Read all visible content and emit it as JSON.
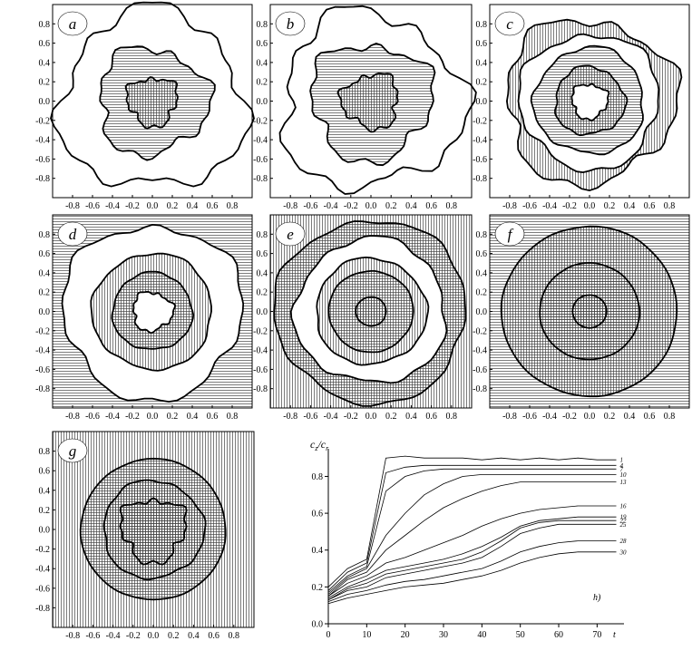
{
  "chart_data": [
    {
      "type": "contour",
      "label": "a",
      "xlim": [
        -1,
        1
      ],
      "ylim": [
        -1,
        1
      ],
      "xticks": [
        -0.8,
        -0.6,
        -0.4,
        -0.2,
        {
          "value": 0,
          "label": "0.0"
        },
        0.2,
        0.4,
        0.6,
        0.8
      ],
      "yticks": [
        -0.8,
        -0.6,
        -0.4,
        -0.2,
        {
          "value": 0,
          "label": "0.0"
        },
        0.2,
        0.4,
        0.6,
        0.8
      ]
    },
    {
      "type": "contour",
      "label": "b",
      "xlim": [
        -1,
        1
      ],
      "ylim": [
        -1,
        1
      ],
      "xticks": [
        -0.8,
        -0.6,
        -0.4,
        -0.2,
        {
          "value": 0,
          "label": "0.0"
        },
        0.2,
        0.4,
        0.6,
        0.8
      ],
      "yticks": [
        -0.8,
        -0.6,
        -0.4,
        -0.2,
        {
          "value": 0,
          "label": "0.0"
        },
        0.2,
        0.4,
        0.6,
        0.8
      ]
    },
    {
      "type": "contour",
      "label": "c",
      "xlim": [
        -1,
        1
      ],
      "ylim": [
        -1,
        1
      ],
      "xticks": [
        -0.8,
        -0.6,
        -0.4,
        -0.2,
        {
          "value": 0,
          "label": "0.0"
        },
        0.2,
        0.4,
        0.6,
        0.8
      ],
      "yticks": [
        -0.8,
        -0.6,
        -0.4,
        -0.2,
        {
          "value": 0,
          "label": "0.0"
        },
        0.2,
        0.4,
        0.6,
        0.8
      ]
    },
    {
      "type": "contour",
      "label": "d",
      "xlim": [
        -1,
        1
      ],
      "ylim": [
        -1,
        1
      ],
      "xticks": [
        -0.8,
        -0.6,
        -0.4,
        -0.2,
        {
          "value": 0,
          "label": "0.0"
        },
        0.2,
        0.4,
        0.6,
        0.8
      ],
      "yticks": [
        -0.8,
        -0.6,
        -0.4,
        -0.2,
        {
          "value": 0,
          "label": "0.0"
        },
        0.2,
        0.4,
        0.6,
        0.8
      ]
    },
    {
      "type": "contour",
      "label": "e",
      "xlim": [
        -1,
        1
      ],
      "ylim": [
        -1,
        1
      ],
      "xticks": [
        -0.8,
        -0.6,
        -0.4,
        -0.2,
        {
          "value": 0,
          "label": "0.0"
        },
        0.2,
        0.4,
        0.6,
        0.8
      ],
      "yticks": [
        -0.8,
        -0.6,
        -0.4,
        -0.2,
        {
          "value": 0,
          "label": "0.0"
        },
        0.2,
        0.4,
        0.6,
        0.8
      ]
    },
    {
      "type": "contour",
      "label": "f",
      "xlim": [
        -1,
        1
      ],
      "ylim": [
        -1,
        1
      ],
      "xticks": [
        -0.8,
        -0.6,
        -0.4,
        -0.2,
        {
          "value": 0,
          "label": "0.0"
        },
        0.2,
        0.4,
        0.6,
        0.8
      ],
      "yticks": [
        -0.8,
        -0.6,
        -0.4,
        -0.2,
        {
          "value": 0,
          "label": "0.0"
        },
        0.2,
        0.4,
        0.6,
        0.8
      ]
    },
    {
      "type": "contour",
      "label": "g",
      "xlim": [
        -1,
        1
      ],
      "ylim": [
        -1,
        1
      ],
      "xticks": [
        -0.8,
        -0.6,
        -0.4,
        -0.2,
        {
          "value": 0,
          "label": "0.0"
        },
        0.2,
        0.4,
        0.6,
        0.8
      ],
      "yticks": [
        -0.8,
        -0.6,
        -0.4,
        -0.2,
        {
          "value": 0,
          "label": "0.0"
        },
        0.2,
        0.4,
        0.6,
        0.8
      ]
    },
    {
      "type": "line",
      "label": "h)",
      "ylabel": [
        "c",
        "z",
        "/c",
        "r"
      ],
      "xlabel": "t",
      "xlim": [
        0,
        77
      ],
      "ylim": [
        0,
        0.95
      ],
      "xticks": [
        0,
        10,
        20,
        30,
        40,
        50,
        60,
        70
      ],
      "yticks": [
        {
          "value": 0,
          "label": "0.0"
        },
        0.2,
        0.4,
        0.6,
        0.8
      ],
      "x": [
        0,
        5,
        10,
        15,
        20,
        25,
        30,
        35,
        40,
        45,
        50,
        55,
        60,
        65,
        70,
        75
      ],
      "series": [
        {
          "name": "1",
          "color": "#000",
          "values": [
            0.2,
            0.3,
            0.35,
            0.9,
            0.91,
            0.9,
            0.9,
            0.9,
            0.89,
            0.9,
            0.89,
            0.9,
            0.89,
            0.9,
            0.89,
            0.89
          ]
        },
        {
          "name": "4",
          "color": "#000",
          "values": [
            0.18,
            0.28,
            0.33,
            0.82,
            0.85,
            0.86,
            0.86,
            0.86,
            0.86,
            0.86,
            0.86,
            0.86,
            0.86,
            0.86,
            0.86,
            0.86
          ]
        },
        {
          "name": "7",
          "color": "#000",
          "values": [
            0.17,
            0.26,
            0.31,
            0.72,
            0.8,
            0.83,
            0.84,
            0.84,
            0.84,
            0.84,
            0.84,
            0.84,
            0.84,
            0.84,
            0.84,
            0.84
          ]
        },
        {
          "name": "10",
          "color": "#000",
          "values": [
            0.16,
            0.25,
            0.3,
            0.48,
            0.6,
            0.7,
            0.76,
            0.8,
            0.81,
            0.81,
            0.81,
            0.81,
            0.81,
            0.81,
            0.81,
            0.81
          ]
        },
        {
          "name": "13",
          "color": "#000",
          "values": [
            0.15,
            0.24,
            0.28,
            0.4,
            0.48,
            0.56,
            0.63,
            0.68,
            0.72,
            0.75,
            0.77,
            0.77,
            0.77,
            0.77,
            0.77,
            0.77
          ]
        },
        {
          "name": "16",
          "color": "#000",
          "values": [
            0.15,
            0.22,
            0.26,
            0.33,
            0.36,
            0.4,
            0.44,
            0.48,
            0.53,
            0.57,
            0.6,
            0.62,
            0.63,
            0.64,
            0.64,
            0.64
          ]
        },
        {
          "name": "19",
          "color": "#000",
          "values": [
            0.14,
            0.2,
            0.24,
            0.29,
            0.31,
            0.33,
            0.35,
            0.38,
            0.42,
            0.47,
            0.53,
            0.56,
            0.57,
            0.58,
            0.58,
            0.58
          ]
        },
        {
          "name": "22",
          "color": "#000",
          "values": [
            0.13,
            0.19,
            0.22,
            0.27,
            0.29,
            0.31,
            0.33,
            0.35,
            0.39,
            0.45,
            0.52,
            0.55,
            0.56,
            0.56,
            0.56,
            0.56
          ]
        },
        {
          "name": "25",
          "color": "#000",
          "values": [
            0.13,
            0.18,
            0.2,
            0.25,
            0.27,
            0.29,
            0.31,
            0.33,
            0.36,
            0.42,
            0.49,
            0.52,
            0.54,
            0.54,
            0.54,
            0.54
          ]
        },
        {
          "name": "28",
          "color": "#000",
          "values": [
            0.12,
            0.16,
            0.18,
            0.21,
            0.23,
            0.24,
            0.26,
            0.28,
            0.3,
            0.34,
            0.39,
            0.42,
            0.44,
            0.45,
            0.45,
            0.45
          ]
        },
        {
          "name": "30",
          "color": "#000",
          "values": [
            0.11,
            0.14,
            0.16,
            0.18,
            0.2,
            0.21,
            0.22,
            0.24,
            0.26,
            0.29,
            0.33,
            0.36,
            0.38,
            0.39,
            0.39,
            0.39
          ]
        }
      ]
    }
  ]
}
